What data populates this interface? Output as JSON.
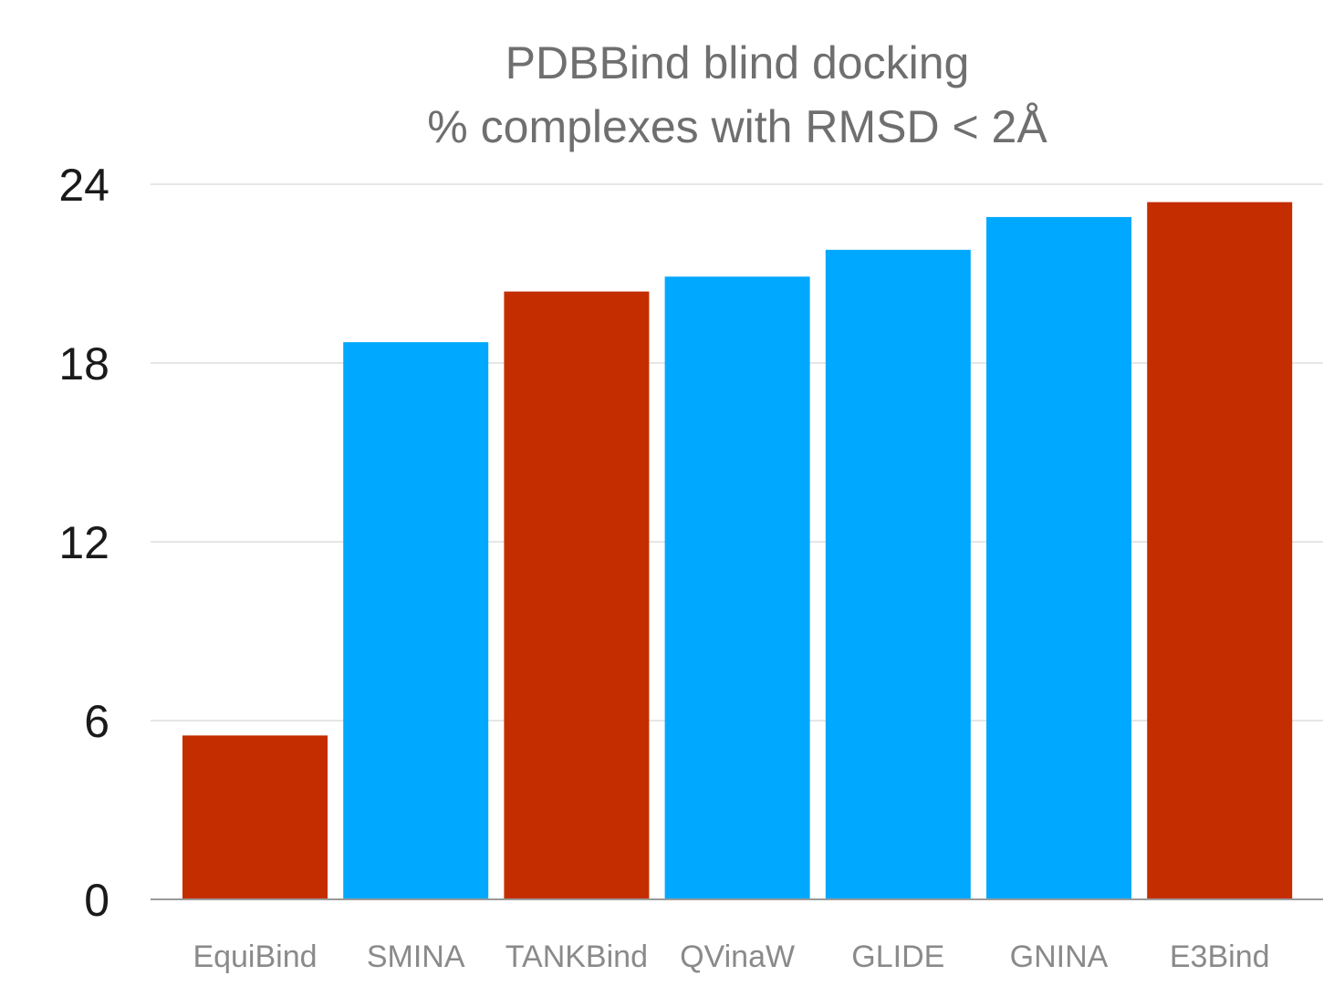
{
  "chart_data": {
    "type": "bar",
    "title": "PDBBind blind docking",
    "subtitle": "% complexes with RMSD < 2Å",
    "xlabel": "",
    "ylabel": "",
    "ylim": [
      0,
      24
    ],
    "yticks": [
      0,
      6,
      12,
      18,
      24
    ],
    "grid": true,
    "categories": [
      "EquiBind",
      "SMINA",
      "TANKBind",
      "QVinaW",
      "GLIDE",
      "GNINA",
      "E3Bind"
    ],
    "values": [
      5.5,
      18.7,
      20.4,
      20.9,
      21.8,
      22.9,
      23.4
    ],
    "bar_colors": [
      "#c42d00",
      "#00a8ff",
      "#c42d00",
      "#00a8ff",
      "#00a8ff",
      "#00a8ff",
      "#c42d00"
    ]
  }
}
